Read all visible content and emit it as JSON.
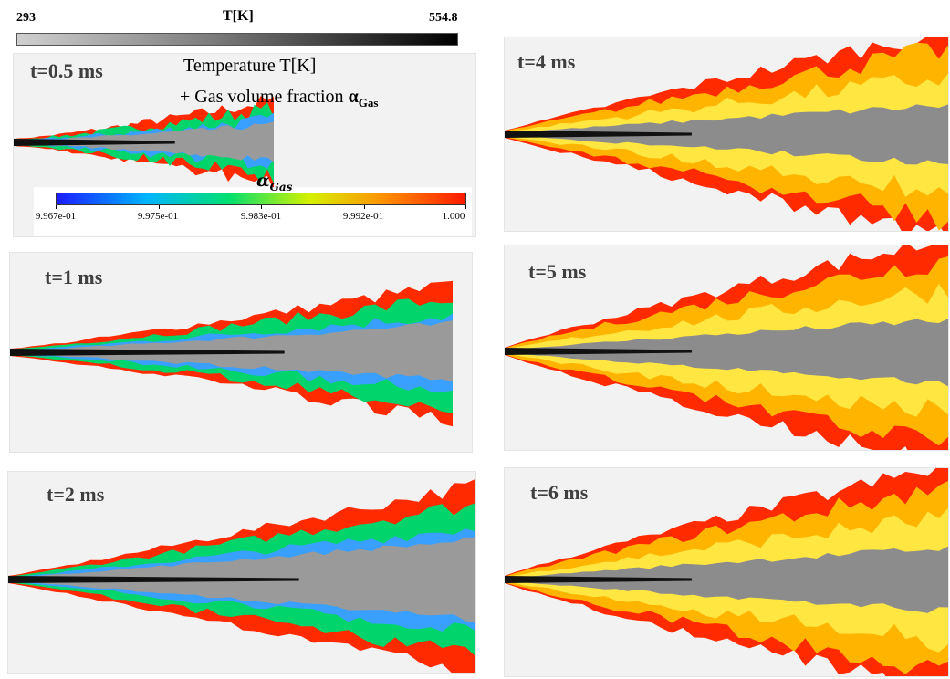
{
  "temperature_colorbar": {
    "min_label": "293",
    "title": "T[K]",
    "max_label": "554.8",
    "colors": [
      "#c8c8c8",
      "#000000"
    ]
  },
  "annotation": {
    "line1": "Temperature T[K]",
    "line2_prefix": "+ Gas volume fraction ",
    "line2_symbol": "α",
    "line2_subscript": "Gas"
  },
  "alpha_colorbar": {
    "title_symbol": "α",
    "title_subscript": "Gas",
    "ticks": [
      "9.967e-01",
      "9.975e-01",
      "9.983e-01",
      "9.992e-01",
      "1.000"
    ],
    "colors": [
      "#1c1cff",
      "#00b4ff",
      "#00e070",
      "#d6f000",
      "#ff9000",
      "#ff1a00"
    ]
  },
  "panels": [
    {
      "time_label": "t=0.5 ms",
      "growth": 0.0
    },
    {
      "time_label": "t=1 ms",
      "growth": 0.2
    },
    {
      "time_label": "t=2 ms",
      "growth": 0.4
    },
    {
      "time_label": "t=4 ms",
      "growth": 0.6
    },
    {
      "time_label": "t=5 ms",
      "growth": 0.8
    },
    {
      "time_label": "t=6 ms",
      "growth": 1.0
    }
  ]
}
